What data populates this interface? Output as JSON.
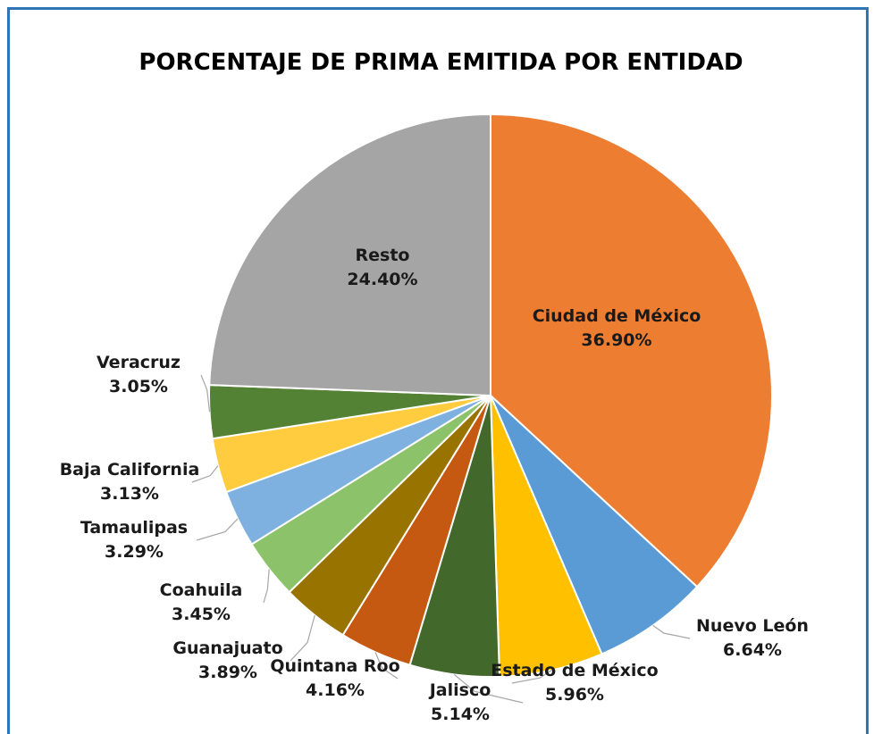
{
  "chart_data": {
    "type": "pie",
    "title": "PORCENTAJE DE PRIMA EMITIDA POR ENTIDAD",
    "categories": [
      "Ciudad de México",
      "Nuevo León",
      "Estado de México",
      "Jalisco",
      "Quintana Roo",
      "Guanajuato",
      "Coahuila",
      "Tamaulipas",
      "Baja California",
      "Veracruz",
      "Resto"
    ],
    "values": [
      36.9,
      6.64,
      5.96,
      5.14,
      4.16,
      3.89,
      3.45,
      3.29,
      3.13,
      3.05,
      24.4
    ],
    "value_labels": [
      "36.90%",
      "6.64%",
      "5.96%",
      "5.14%",
      "4.16%",
      "3.89%",
      "3.45%",
      "3.29%",
      "3.13%",
      "3.05%",
      "24.40%"
    ],
    "colors": [
      "#ED7D31",
      "#5B9BD5",
      "#FFC000",
      "#43682B",
      "#C65911",
      "#997300",
      "#8BC26A",
      "#7FB1E0",
      "#FFCC40",
      "#548235",
      "#A5A5A5"
    ]
  }
}
